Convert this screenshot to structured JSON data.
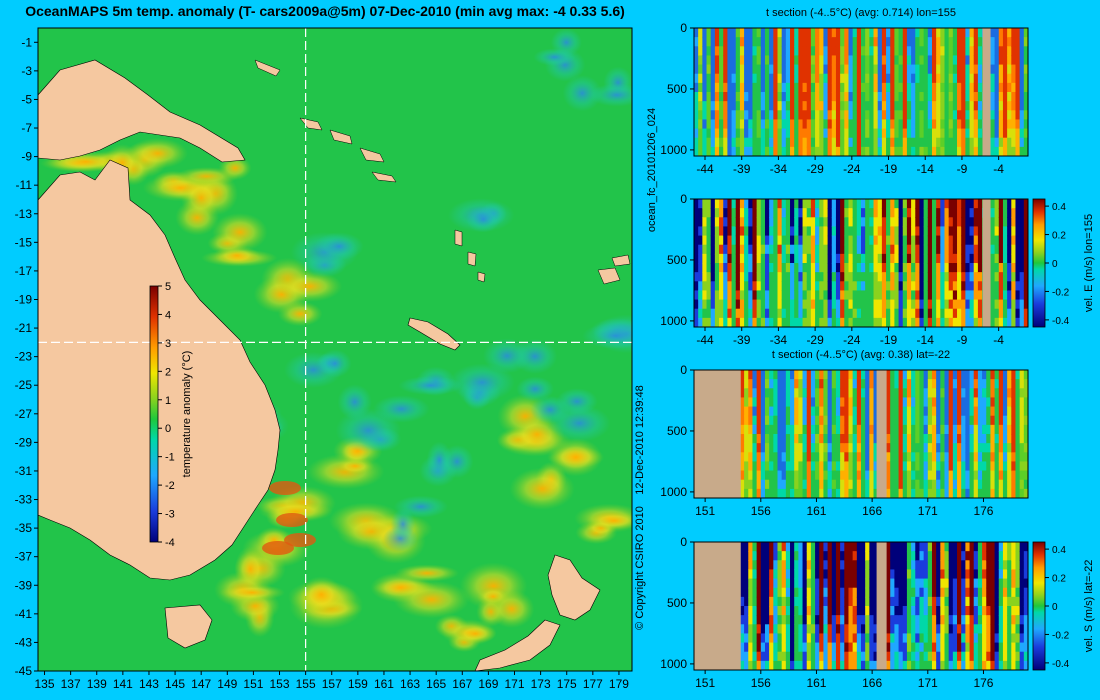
{
  "title": "OceanMAPS 5m temp. anomaly (T- cars2009a@5m) 07-Dec-2010 (min avg max: -4 0.33 5.6)",
  "side_texts": {
    "run_id": "ocean_fc_20101206_024",
    "timestamp": "12-Dec-2010 12:39:48",
    "copyright": "© Copyright CSIRO 2010"
  },
  "colors": {
    "background": "#00ccff",
    "land": "#f5c8a0",
    "land_section": "#c8aa8a",
    "ocean_base": "#22c44a",
    "warm": "#ff9c00",
    "cold": "#2b8be0",
    "crosshair": "#ffffff"
  },
  "chart_data": [
    {
      "type": "heatmap",
      "name": "map",
      "title": "OceanMAPS 5m temp. anomaly (T- cars2009a@5m) 07-Dec-2010 (min avg max: -4 0.33 5.6)",
      "x_ticks": [
        "135",
        "137",
        "139",
        "141",
        "143",
        "145",
        "147",
        "149",
        "151",
        "153",
        "155",
        "157",
        "159",
        "161",
        "163",
        "165",
        "167",
        "169",
        "171",
        "173",
        "175",
        "177",
        "179"
      ],
      "y_ticks": [
        "-1",
        "-3",
        "-5",
        "-7",
        "-9",
        "-11",
        "-13",
        "-15",
        "-17",
        "-19",
        "-21",
        "-23",
        "-25",
        "-27",
        "-29",
        "-31",
        "-33",
        "-35",
        "-37",
        "-39",
        "-41",
        "-43",
        "-45"
      ],
      "xlim": [
        134.5,
        180
      ],
      "ylim": [
        -45,
        0
      ],
      "crosshair": {
        "lon": 155,
        "lat": -22
      },
      "colorbar": {
        "label": "temperature anomaly (°C)",
        "ticks": [
          "5",
          "4",
          "3",
          "2",
          "1",
          "0",
          "-1",
          "-2",
          "-3",
          "-4"
        ],
        "range": [
          -4,
          5
        ]
      }
    },
    {
      "type": "heatmap",
      "name": "t-section-lon155",
      "title": "t section (-4..5°C) (avg: 0.714) lon=155",
      "x_ticks": [
        "-44",
        "-39",
        "-34",
        "-29",
        "-24",
        "-19",
        "-14",
        "-9",
        "-4"
      ],
      "y_ticks": [
        "0",
        "500",
        "1000"
      ],
      "xlim": [
        -45.5,
        0
      ],
      "ylim": [
        0,
        1050
      ]
    },
    {
      "type": "heatmap",
      "name": "vel-e-section-lon155",
      "title": "",
      "x_ticks": [
        "-44",
        "-39",
        "-34",
        "-29",
        "-24",
        "-19",
        "-14",
        "-9",
        "-4"
      ],
      "y_ticks": [
        "0",
        "500",
        "1000"
      ],
      "xlim": [
        -45.5,
        0
      ],
      "ylim": [
        0,
        1050
      ],
      "colorbar": {
        "label": "vel. E (m/s) lon=155",
        "ticks": [
          "0.4",
          "0.2",
          "0",
          "-0.2",
          "-0.4"
        ],
        "range": [
          -0.45,
          0.45
        ]
      }
    },
    {
      "type": "heatmap",
      "name": "t-section-lat-22",
      "title": "t section (-4..5°C) (avg: 0.38) lat=-22",
      "x_ticks": [
        "151",
        "156",
        "161",
        "166",
        "171",
        "176"
      ],
      "y_ticks": [
        "0",
        "500",
        "1000"
      ],
      "xlim": [
        150,
        180
      ],
      "ylim": [
        0,
        1050
      ]
    },
    {
      "type": "heatmap",
      "name": "vel-s-section-lat-22",
      "title": "",
      "x_ticks": [
        "151",
        "156",
        "161",
        "166",
        "171",
        "176"
      ],
      "y_ticks": [
        "0",
        "500",
        "1000"
      ],
      "xlim": [
        150,
        180
      ],
      "ylim": [
        0,
        1050
      ],
      "colorbar": {
        "label": "vel. S (m/s) lat=-22",
        "ticks": [
          "0.4",
          "0.2",
          "0",
          "-0.2",
          "-0.4"
        ],
        "range": [
          -0.45,
          0.45
        ]
      }
    }
  ]
}
